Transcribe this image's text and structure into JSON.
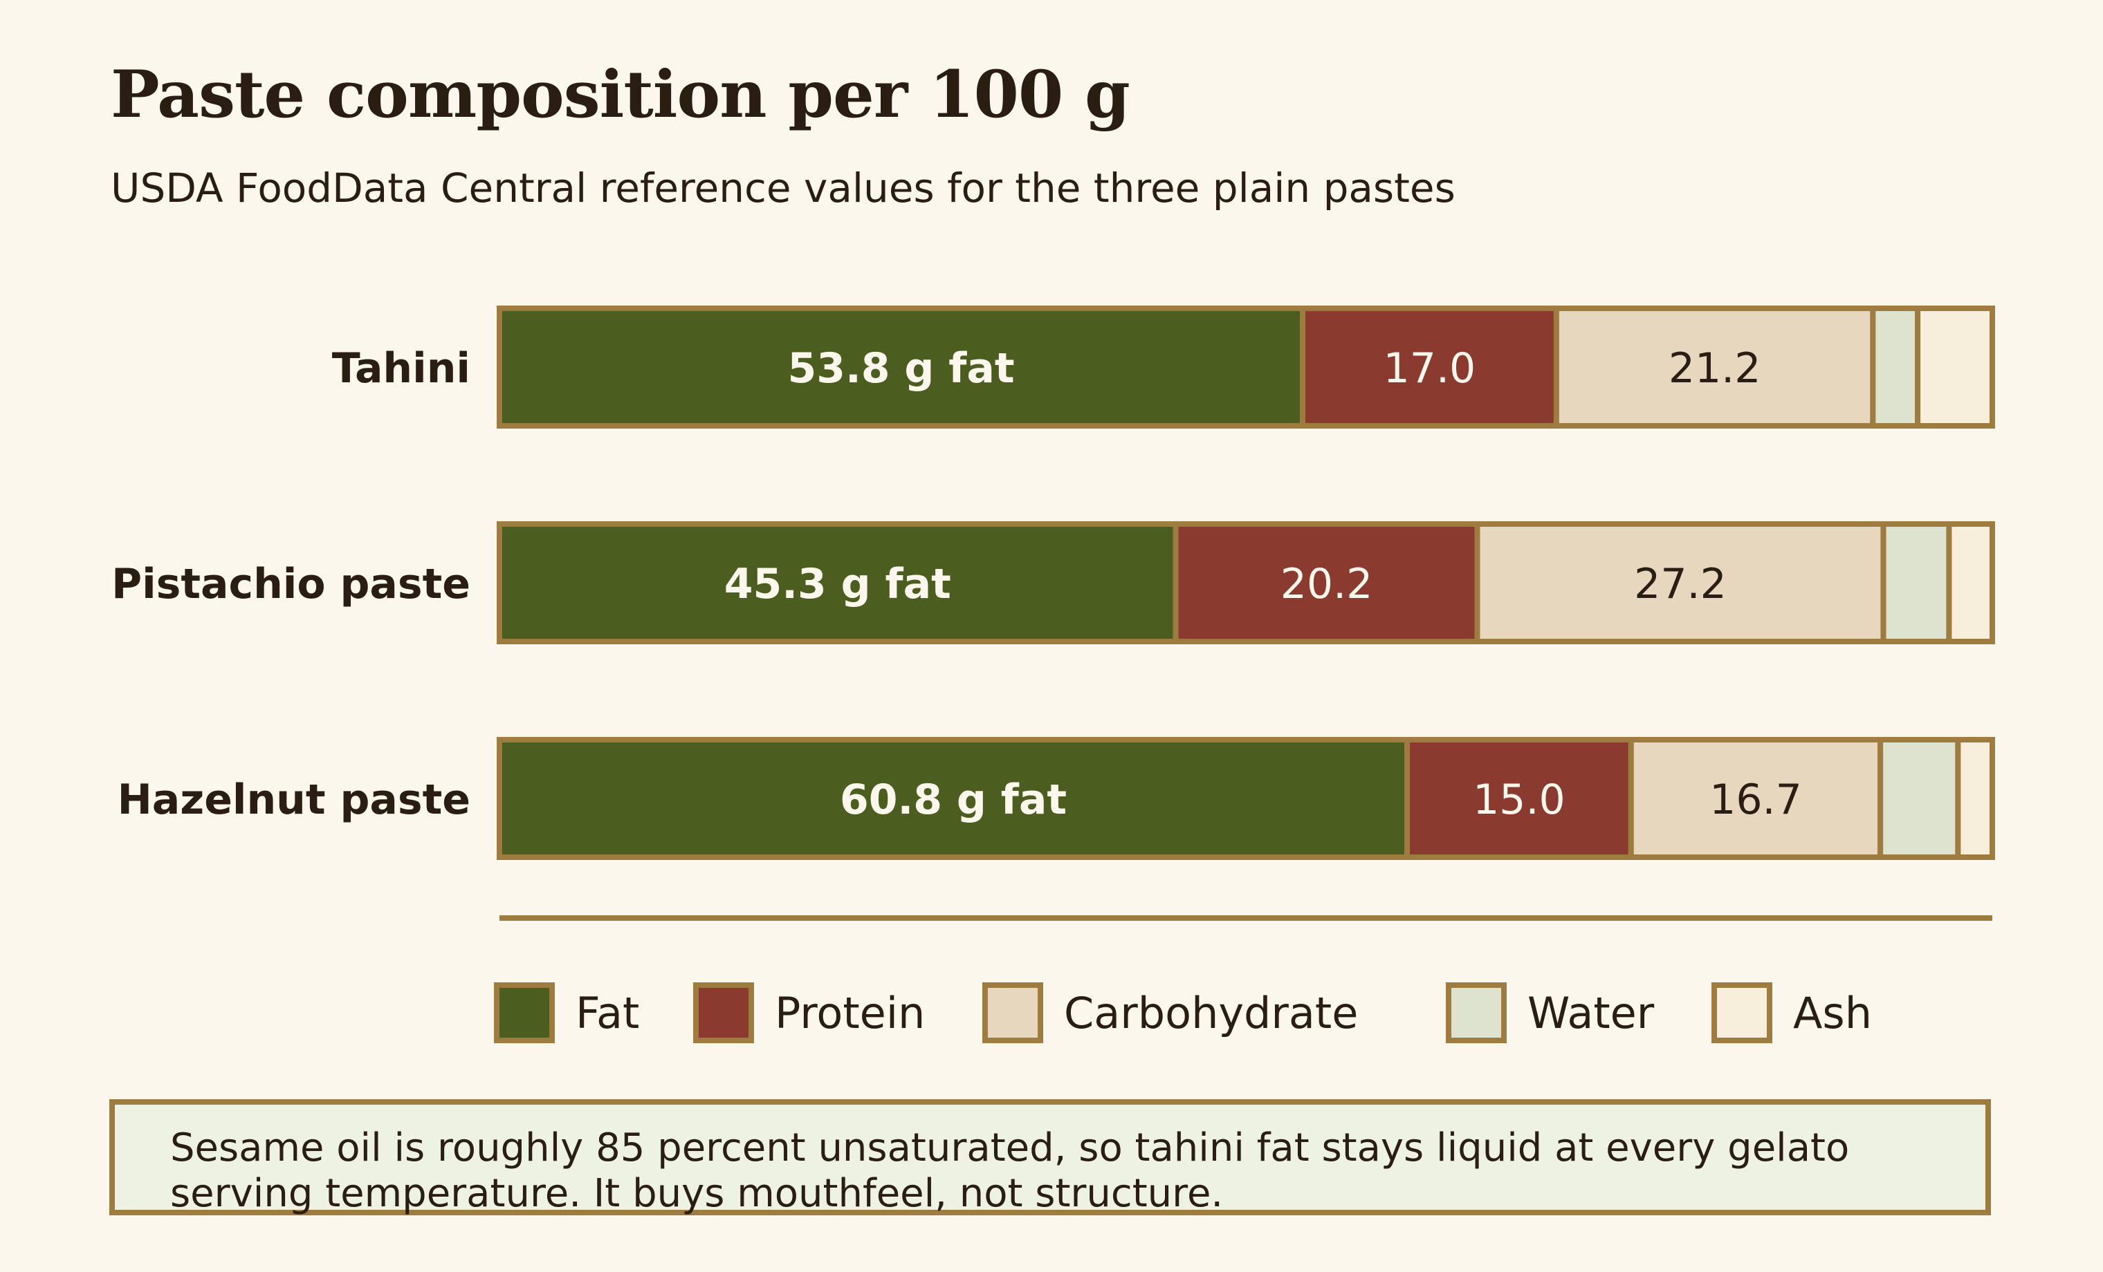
{
  "title": "Paste composition per 100 g",
  "subtitle": "USDA FoodData Central reference values for the three plain pastes",
  "note": "Sesame oil is roughly 85 percent unsaturated, so tahini fat stays liquid at every gelato serving temperature. It buys mouthfeel, not structure.",
  "colors": {
    "fat": "#4b5e20",
    "protein": "#8b3a2f",
    "carbohydrate": "#e8d7bf",
    "water": "#dde3cf",
    "ash": "#f7eedb",
    "border": "#9e7b3f"
  },
  "chart_data": {
    "type": "bar",
    "orientation": "horizontal",
    "stacked": true,
    "unit": "g per 100 g",
    "categories": [
      "Tahini",
      "Pistachio paste",
      "Hazelnut paste"
    ],
    "series": [
      {
        "name": "Fat",
        "values": [
          53.8,
          45.3,
          60.8
        ],
        "color": "#4b5e20",
        "value_labels": [
          "53.8 g fat",
          "45.3 g fat",
          "60.8 g fat"
        ]
      },
      {
        "name": "Protein",
        "values": [
          17.0,
          20.2,
          15.0
        ],
        "color": "#8b3a2f",
        "value_labels": [
          "17.0",
          "20.2",
          "15.0"
        ]
      },
      {
        "name": "Carbohydrate",
        "values": [
          21.2,
          27.2,
          16.7
        ],
        "color": "#e8d7bf",
        "value_labels": [
          "21.2",
          "27.2",
          "16.7"
        ]
      },
      {
        "name": "Water",
        "values": [
          3.0,
          4.4,
          5.2
        ],
        "color": "#dde3cf",
        "value_labels": [
          "",
          "",
          ""
        ]
      },
      {
        "name": "Ash",
        "values": [
          5.0,
          2.9,
          2.3
        ],
        "color": "#f7eedb",
        "value_labels": [
          "",
          "",
          ""
        ]
      }
    ],
    "xlim": [
      0,
      100
    ],
    "grid": false,
    "legend_position": "bottom"
  }
}
